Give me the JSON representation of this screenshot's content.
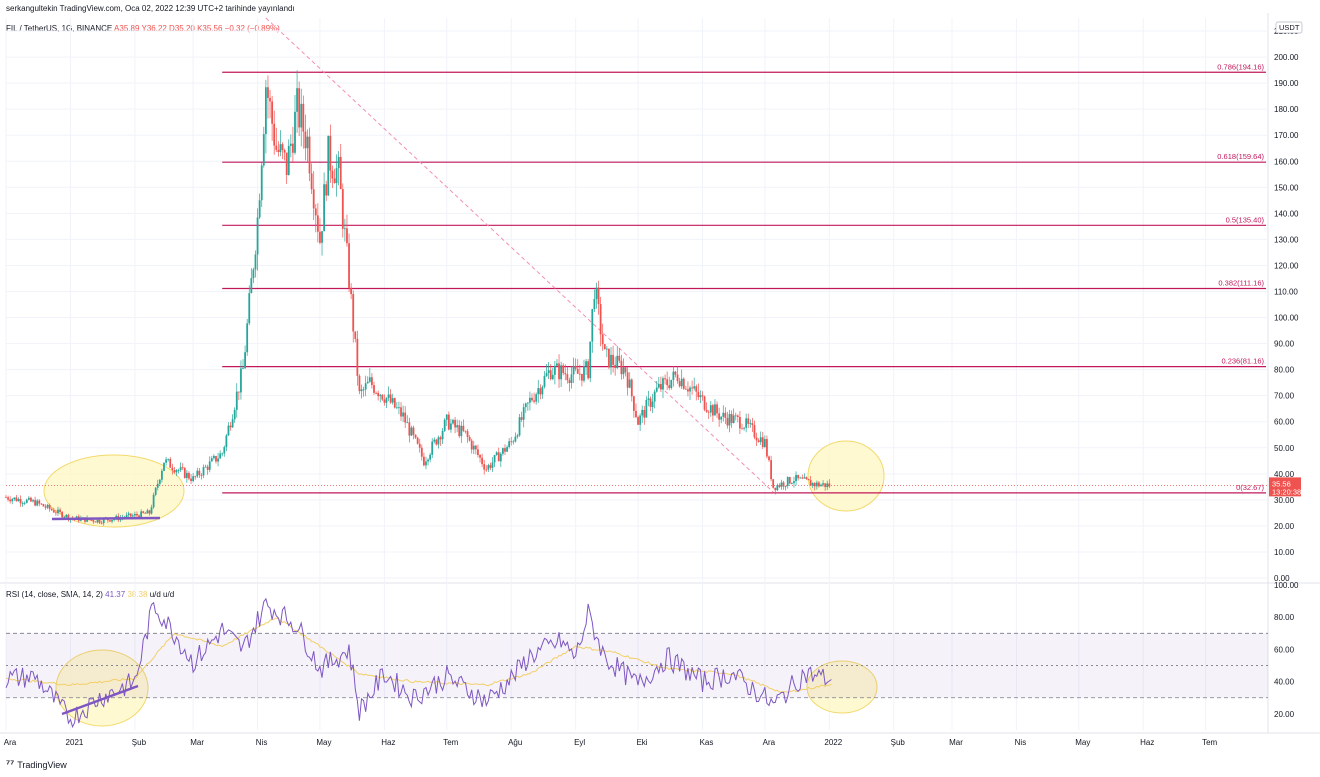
{
  "header": {
    "publish_line": "serkangultekin TradingView.com, Oca 02, 2022 12:39 UTC+2 tarihinde yayınlandı"
  },
  "symbol": {
    "name": "FIL / TetherUS, 1G, BINANCE",
    "ohlc": "A35.89 Y36.22 D35.20 K35.56 −0.32 (−0.89%)"
  },
  "price_axis": {
    "currency": "USDT",
    "ticks": [
      "210.00",
      "200.00",
      "190.00",
      "180.00",
      "170.00",
      "160.00",
      "150.00",
      "140.00",
      "130.00",
      "120.00",
      "110.00",
      "100.00",
      "90.00",
      "80.00",
      "70.00",
      "60.00",
      "50.00",
      "40.00",
      "30.00",
      "20.00",
      "10.00",
      "0.00"
    ],
    "last_price": "35.56",
    "countdown": "13:20:38"
  },
  "rsi": {
    "legend": "RSI (14, close, SMA, 14, 2)",
    "value": "41.37",
    "sma_value": "38.38",
    "suffix": "u/d  u/d",
    "ticks": [
      "100.00",
      "80.00",
      "60.00",
      "40.00",
      "20.00"
    ]
  },
  "time_axis": {
    "labels": [
      "Ara",
      "2021",
      "Şub",
      "Mar",
      "Nis",
      "May",
      "Haz",
      "Tem",
      "Ağu",
      "Eyl",
      "Eki",
      "Kas",
      "Ara",
      "2022",
      "Şub",
      "Mar",
      "Nis",
      "May",
      "Haz",
      "Tem"
    ]
  },
  "brand": {
    "name": "TradingView"
  },
  "colors": {
    "up": "#26a69a",
    "down": "#ef5350",
    "fib": "#c2185b",
    "rsi_line": "#7e57c2",
    "rsi_ma": "#f2cf67",
    "highlight": "#fff7c2"
  },
  "chart_data": [
    {
      "type": "line",
      "series_kind": "candlestick",
      "x_unit": "day",
      "x_range": [
        "2020-12-01",
        "2022-07-31"
      ],
      "ylim": [
        0,
        215
      ],
      "scale": "linear",
      "grid": true,
      "x": [
        "2020-12-01",
        "2020-12-15",
        "2021-01-01",
        "2021-01-15",
        "2021-02-01",
        "2021-02-08",
        "2021-02-15",
        "2021-03-01",
        "2021-03-15",
        "2021-03-25",
        "2021-04-01",
        "2021-04-05",
        "2021-04-10",
        "2021-04-15",
        "2021-04-20",
        "2021-04-25",
        "2021-05-01",
        "2021-05-05",
        "2021-05-10",
        "2021-05-15",
        "2021-05-20",
        "2021-05-25",
        "2021-06-01",
        "2021-06-10",
        "2021-06-20",
        "2021-07-01",
        "2021-07-10",
        "2021-07-20",
        "2021-08-01",
        "2021-08-10",
        "2021-08-20",
        "2021-09-01",
        "2021-09-07",
        "2021-09-10",
        "2021-09-15",
        "2021-09-25",
        "2021-10-01",
        "2021-10-10",
        "2021-10-20",
        "2021-11-01",
        "2021-11-10",
        "2021-11-20",
        "2021-12-01",
        "2021-12-05",
        "2021-12-15",
        "2021-12-25",
        "2022-01-02"
      ],
      "values": [
        31,
        29,
        23,
        22,
        24,
        25,
        45,
        38,
        48,
        80,
        138,
        190,
        165,
        158,
        180,
        168,
        130,
        162,
        155,
        115,
        70,
        75,
        70,
        62,
        45,
        60,
        55,
        42,
        52,
        68,
        80,
        78,
        80,
        112,
        85,
        80,
        60,
        72,
        78,
        68,
        62,
        60,
        52,
        35,
        38,
        36,
        35.56
      ],
      "annotations": [
        {
          "label": "0.786(194.16)",
          "value": 194.16
        },
        {
          "label": "0.618(159.64)",
          "value": 159.64
        },
        {
          "label": "0.5(135.40)",
          "value": 135.4
        },
        {
          "label": "0.382(111.16)",
          "value": 111.16
        },
        {
          "label": "0.236(81.16)",
          "value": 81.16
        },
        {
          "label": "0(32.67)",
          "value": 32.67
        }
      ]
    },
    {
      "type": "line",
      "x_range": [
        "2020-12-01",
        "2022-07-31"
      ],
      "ylim": [
        10,
        100
      ],
      "series": [
        {
          "name": "RSI",
          "x": [
            "2020-12-01",
            "2020-12-15",
            "2021-01-01",
            "2021-01-15",
            "2021-02-01",
            "2021-02-10",
            "2021-02-20",
            "2021-03-01",
            "2021-03-15",
            "2021-03-25",
            "2021-04-05",
            "2021-04-20",
            "2021-05-01",
            "2021-05-15",
            "2021-05-20",
            "2021-06-01",
            "2021-06-15",
            "2021-07-01",
            "2021-07-20",
            "2021-08-01",
            "2021-08-10",
            "2021-08-25",
            "2021-09-01",
            "2021-09-07",
            "2021-09-15",
            "2021-10-01",
            "2021-10-15",
            "2021-11-01",
            "2021-11-15",
            "2021-12-01",
            "2021-12-05",
            "2021-12-20",
            "2022-01-02"
          ],
          "values": [
            42,
            43,
            17,
            30,
            40,
            88,
            70,
            52,
            72,
            60,
            88,
            75,
            48,
            60,
            22,
            45,
            30,
            43,
            28,
            42,
            56,
            65,
            55,
            82,
            55,
            38,
            55,
            40,
            45,
            30,
            25,
            45,
            41.37
          ]
        },
        {
          "name": "SMA",
          "x": [
            "2020-12-01",
            "2021-01-01",
            "2021-02-01",
            "2021-02-20",
            "2021-03-15",
            "2021-04-10",
            "2021-05-01",
            "2021-05-20",
            "2021-06-15",
            "2021-07-20",
            "2021-08-10",
            "2021-09-01",
            "2021-09-20",
            "2021-10-15",
            "2021-11-15",
            "2021-12-10",
            "2022-01-02"
          ],
          "values": [
            42,
            38,
            42,
            70,
            62,
            80,
            62,
            45,
            40,
            38,
            45,
            62,
            58,
            48,
            45,
            33,
            38.38
          ]
        }
      ],
      "annotations": [
        {
          "label": "70",
          "value": 70
        },
        {
          "label": "50",
          "value": 50
        },
        {
          "label": "30",
          "value": 30
        }
      ]
    }
  ]
}
